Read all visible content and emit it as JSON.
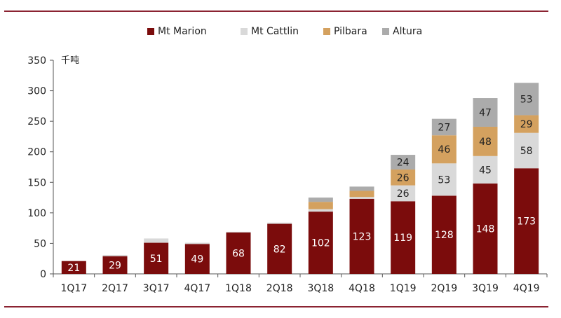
{
  "chart_data": {
    "type": "bar",
    "stacked": true,
    "unit_label": "千吨",
    "categories": [
      "1Q17",
      "2Q17",
      "3Q17",
      "4Q17",
      "1Q18",
      "2Q18",
      "3Q18",
      "4Q18",
      "1Q19",
      "2Q19",
      "3Q19",
      "4Q19"
    ],
    "series": [
      {
        "name": "Mt Marion",
        "color": "#7b0c0c",
        "values": [
          21,
          29,
          51,
          49,
          68,
          82,
          102,
          123,
          119,
          128,
          148,
          173
        ],
        "labels": [
          "21",
          "29",
          "51",
          "49",
          "68",
          "82",
          "102",
          "123",
          "119",
          "128",
          "148",
          "173"
        ]
      },
      {
        "name": "Mt Cattlin",
        "color": "#d9d9d9",
        "values": [
          0,
          2,
          7,
          2,
          1,
          2,
          4,
          3,
          26,
          53,
          45,
          58
        ],
        "labels": [
          "",
          "",
          "",
          "",
          "",
          "",
          "",
          "",
          "26",
          "53",
          "45",
          "58"
        ]
      },
      {
        "name": "Pilbara",
        "color": "#d4a15f",
        "values": [
          0,
          0,
          0,
          0,
          0,
          0,
          12,
          10,
          26,
          46,
          48,
          29
        ],
        "labels": [
          "",
          "",
          "",
          "",
          "",
          "",
          "",
          "",
          "26",
          "46",
          "48",
          "29"
        ]
      },
      {
        "name": "Altura",
        "color": "#ababab",
        "values": [
          0,
          0,
          0,
          0,
          0,
          0,
          7,
          7,
          24,
          27,
          47,
          53
        ],
        "labels": [
          "",
          "",
          "",
          "",
          "",
          "",
          "",
          "",
          "24",
          "27",
          "47",
          "53"
        ]
      }
    ],
    "yticks": [
      0,
      50,
      100,
      150,
      200,
      250,
      300,
      350
    ],
    "ylim": [
      0,
      350
    ],
    "legend_position": "top-center",
    "grid": false
  }
}
